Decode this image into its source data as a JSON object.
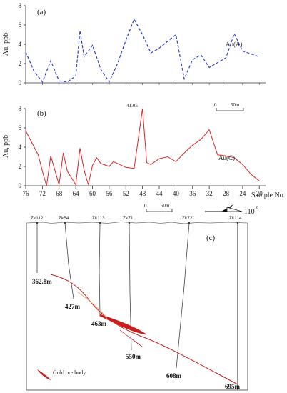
{
  "colors": {
    "series_a": "#2c3fd8",
    "series_b": "#e02424",
    "ore": "#c81e1e",
    "axis": "#333333"
  },
  "chart_data": [
    {
      "type": "line",
      "panel_label": "(a)",
      "ylabel": "Au, ppb",
      "ylim": [
        0,
        8
      ],
      "yticks": [
        "0",
        "2",
        "4",
        "6",
        "8"
      ],
      "series": [
        {
          "name": "Au(A)",
          "style": "dashed",
          "x": [
            76,
            74,
            72,
            70,
            68,
            66,
            64,
            63,
            62,
            60,
            58,
            56,
            54,
            52,
            50,
            48,
            46,
            44,
            40,
            38,
            36,
            34,
            32,
            28,
            26,
            24,
            20
          ],
          "values": [
            3.2,
            1.2,
            0.1,
            2.3,
            0.2,
            0.1,
            0.7,
            5.4,
            2.7,
            3.9,
            1.4,
            0.1,
            2.0,
            4.4,
            6.6,
            5.0,
            3.1,
            3.6,
            5.0,
            0.4,
            2.4,
            2.9,
            1.6,
            2.6,
            5.1,
            3.3,
            2.7
          ]
        }
      ],
      "scale_bar_label": "50m",
      "scale_bar_zero": "0"
    },
    {
      "type": "line",
      "panel_label": "(b)",
      "ylabel": "Au, ppb",
      "xlabel": "Sample No.",
      "ylim": [
        0,
        8
      ],
      "yticks": [
        "0",
        "2",
        "4",
        "6",
        "8"
      ],
      "xticks": [
        "76",
        "72",
        "68",
        "64",
        "60",
        "56",
        "52",
        "48",
        "44",
        "40",
        "36",
        "32",
        "28",
        "24",
        "20"
      ],
      "peak_annotation": "41.05",
      "series": [
        {
          "name": "Au(C)",
          "style": "solid",
          "x": [
            76,
            73,
            72,
            71,
            70,
            68,
            67,
            66,
            64,
            63,
            62,
            61,
            60,
            59,
            58,
            56,
            55,
            54,
            52,
            50,
            48,
            47,
            46,
            44,
            42,
            40,
            38,
            36,
            34,
            32,
            30,
            28,
            26,
            24,
            22,
            20
          ],
          "values": [
            5.7,
            3.2,
            1.5,
            0.0,
            3.1,
            0.1,
            3.4,
            1.5,
            0.1,
            3.9,
            1.6,
            0.1,
            2.1,
            2.9,
            2.3,
            2.0,
            2.5,
            2.3,
            1.9,
            1.8,
            8.0,
            2.4,
            2.2,
            2.8,
            3.0,
            2.5,
            3.4,
            4.2,
            4.8,
            5.8,
            3.2,
            3.1,
            2.9,
            2.2,
            1.2,
            0.5
          ]
        }
      ]
    }
  ],
  "section": {
    "panel_label": "(c)",
    "scale_bar_zero": "0",
    "scale_bar_label": "50m",
    "azimuth_label": "110",
    "azimuth_degree": "0",
    "legend_label": "Gold ore body",
    "wells": [
      {
        "name": "Zk112",
        "depth_label": "362.8m"
      },
      {
        "name": "Zk54",
        "depth_label": "427m"
      },
      {
        "name": "Zk113",
        "depth_label": "463m"
      },
      {
        "name": "Zk71",
        "depth_label": "550m"
      },
      {
        "name": "Zk72",
        "depth_label": "608m"
      },
      {
        "name": "Zk114",
        "depth_label": "695m"
      }
    ]
  }
}
